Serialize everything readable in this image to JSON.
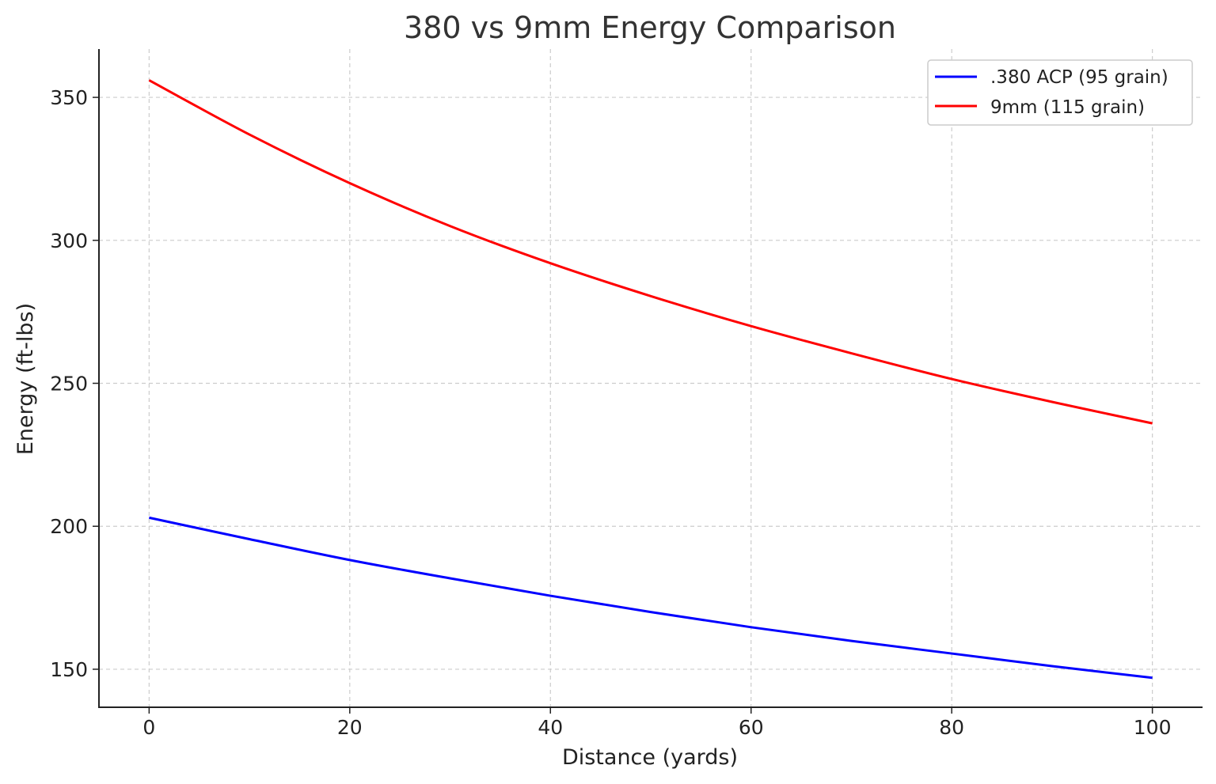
{
  "chart_data": {
    "type": "line",
    "title": "380 vs 9mm Energy Comparison",
    "xlabel": "Distance (yards)",
    "ylabel": "Energy (ft-lbs)",
    "xlim": [
      -5,
      105
    ],
    "ylim": [
      136.7,
      366.9
    ],
    "xticks": [
      0,
      20,
      40,
      60,
      80,
      100
    ],
    "yticks": [
      150,
      200,
      250,
      300,
      350
    ],
    "grid": true,
    "legend_position": "top-right",
    "x": [
      0,
      10,
      20,
      30,
      40,
      50,
      60,
      70,
      80,
      90,
      100
    ],
    "series": [
      {
        "name": ".380 ACP (95 grain)",
        "color": "#0000ff",
        "values": [
          203,
          195.5,
          188.2,
          181.8,
          175.7,
          170,
          164.7,
          159.9,
          155.5,
          151.1,
          147
        ]
      },
      {
        "name": "9mm (115 grain)",
        "color": "#ff0000",
        "values": [
          356,
          337,
          320,
          305,
          292,
          280.5,
          270,
          260.5,
          251.5,
          243.5,
          236
        ]
      }
    ]
  }
}
